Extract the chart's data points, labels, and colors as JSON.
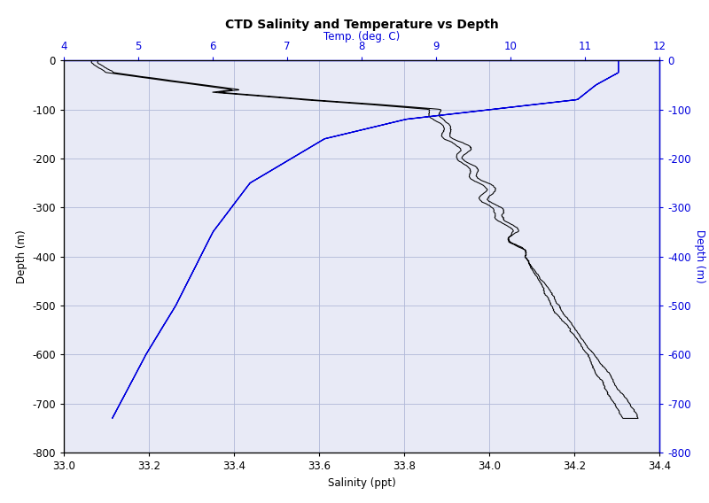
{
  "title": "CTD Salinity and Temperature vs Depth",
  "xlabel_bottom": "Salinity (ppt)",
  "xlabel_top": "Temp. (deg. C)",
  "ylabel_left": "Depth (m)",
  "ylabel_right": "Depth (m)",
  "salinity_xlim": [
    33,
    34.4
  ],
  "temp_xlim": [
    4,
    12
  ],
  "depth_ylim": [
    -800,
    0
  ],
  "salinity_xticks": [
    33,
    33.2,
    33.4,
    33.6,
    33.8,
    34,
    34.2,
    34.4
  ],
  "temp_xticks": [
    4,
    5,
    6,
    7,
    8,
    9,
    10,
    11,
    12
  ],
  "depth_yticks": [
    0,
    -100,
    -200,
    -300,
    -400,
    -500,
    -600,
    -700,
    -800
  ],
  "bg_color": "#e8eaf6",
  "line_color_salinity": "#000000",
  "line_color_temp": "#0000dd",
  "axis_color_temp": "#0000dd",
  "grid_color": "#b0b8d8",
  "title_fontsize": 10,
  "label_fontsize": 8.5,
  "tick_fontsize": 8.5
}
